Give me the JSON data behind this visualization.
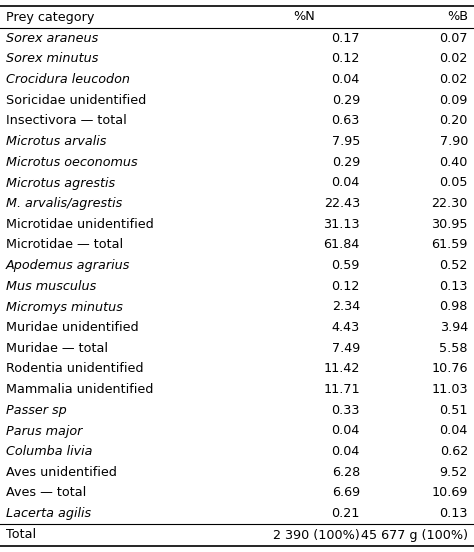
{
  "header": [
    "Prey category",
    "%N",
    "%B"
  ],
  "rows": [
    [
      "Sorex araneus",
      "0.17",
      "0.07",
      true
    ],
    [
      "Sorex minutus",
      "0.12",
      "0.02",
      true
    ],
    [
      "Crocidura leucodon",
      "0.04",
      "0.02",
      true
    ],
    [
      "Soricidae unidentified",
      "0.29",
      "0.09",
      false
    ],
    [
      "Insectivora — total",
      "0.63",
      "0.20",
      false
    ],
    [
      "Microtus arvalis",
      "7.95",
      "7.90",
      true
    ],
    [
      "Microtus oeconomus",
      "0.29",
      "0.40",
      true
    ],
    [
      "Microtus agrestis",
      "0.04",
      "0.05",
      true
    ],
    [
      "M. arvalis/agrestis",
      "22.43",
      "22.30",
      true
    ],
    [
      "Microtidae unidentified",
      "31.13",
      "30.95",
      false
    ],
    [
      "Microtidae — total",
      "61.84",
      "61.59",
      false
    ],
    [
      "Apodemus agrarius",
      "0.59",
      "0.52",
      true
    ],
    [
      "Mus musculus",
      "0.12",
      "0.13",
      true
    ],
    [
      "Micromys minutus",
      "2.34",
      "0.98",
      true
    ],
    [
      "Muridae unidentified",
      "4.43",
      "3.94",
      false
    ],
    [
      "Muridae — total",
      "7.49",
      "5.58",
      false
    ],
    [
      "Rodentia unidentified",
      "11.42",
      "10.76",
      false
    ],
    [
      "Mammalia unidentified",
      "11.71",
      "11.03",
      false
    ],
    [
      "Passer sp",
      "0.33",
      "0.51",
      true
    ],
    [
      "Parus major",
      "0.04",
      "0.04",
      true
    ],
    [
      "Columba livia",
      "0.04",
      "0.62",
      true
    ],
    [
      "Aves unidentified",
      "6.28",
      "9.52",
      false
    ],
    [
      "Aves — total",
      "6.69",
      "10.69",
      false
    ],
    [
      "Lacerta agilis",
      "0.21",
      "0.13",
      true
    ]
  ],
  "footer": [
    "Total",
    "2 390 (100%)",
    "45 677 g (100%)"
  ],
  "bg_color": "#ffffff",
  "line_color": "#000000",
  "text_color": "#000000",
  "font_size": 9.2,
  "fig_width": 4.74,
  "fig_height": 5.52,
  "dpi": 100
}
